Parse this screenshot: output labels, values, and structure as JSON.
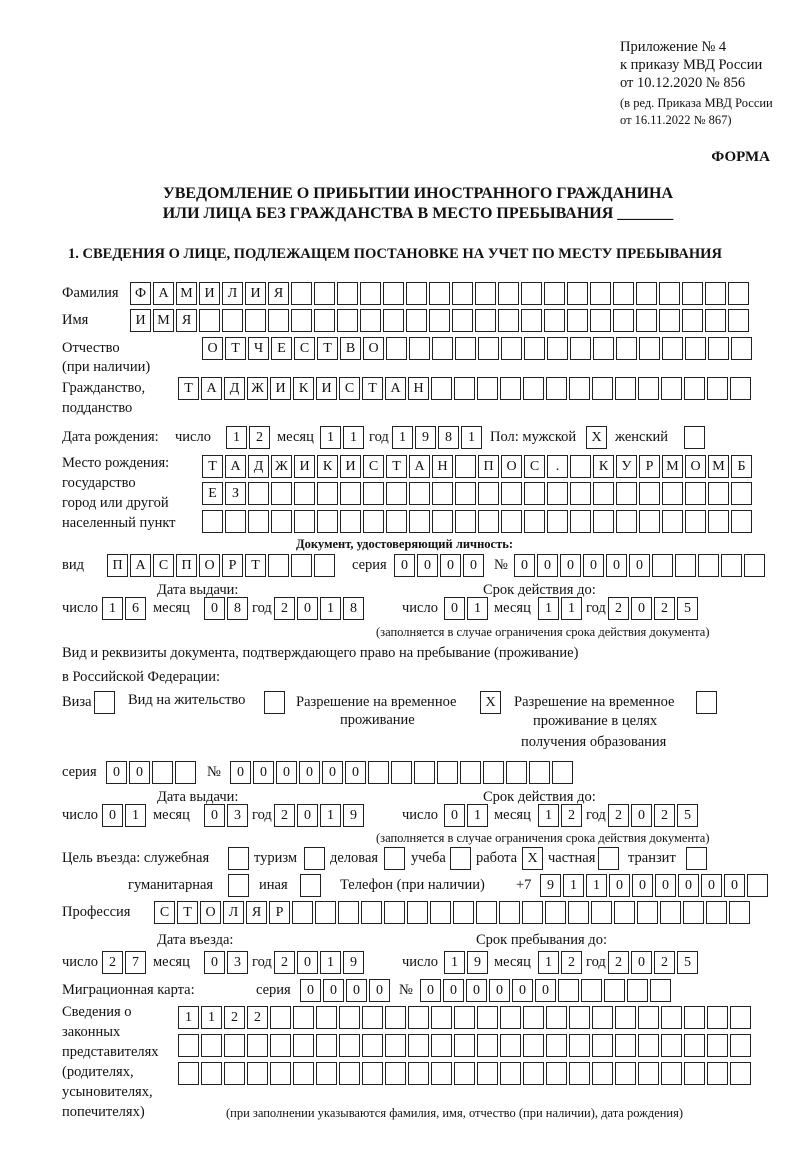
{
  "header": {
    "line1": "Приложение № 4",
    "line2": "к приказу МВД России",
    "line3": "от 10.12.2020 № 856",
    "line4": "(в ред. Приказа МВД России",
    "line5": "от 16.11.2022 № 867)",
    "form": "ФОРМА"
  },
  "title": {
    "line1": "УВЕДОМЛЕНИЕ О ПРИБЫТИИ ИНОСТРАННОГО ГРАЖДАНИНА",
    "line2": "ИЛИ ЛИЦА БЕЗ ГРАЖДАНСТВА В МЕСТО ПРЕБЫВАНИЯ _______"
  },
  "section1": "1. СВЕДЕНИЯ О ЛИЦЕ, ПОДЛЕЖАЩЕМ ПОСТАНОВКЕ НА УЧЕТ ПО МЕСТУ ПРЕБЫВАНИЯ",
  "labels": {
    "surname": "Фамилия",
    "name": "Имя",
    "patronymic": "Отчество",
    "patronymic2": "(при наличии)",
    "citizenship": "Гражданство,",
    "citizenship2": "подданство",
    "birth_date": "Дата рождения:",
    "day": "число",
    "month": "месяц",
    "year": "год",
    "sex": "Пол: мужской",
    "female": "женский",
    "birth_place": "Место рождения:",
    "bp2": "государство",
    "bp3": "город или другой",
    "bp4": "населенный пункт",
    "id_doc": "Документ, удостоверяющий личность:",
    "kind": "вид",
    "series": "серия",
    "number": "№",
    "issue_date": "Дата выдачи:",
    "valid_until": "Срок действия до:",
    "validity_note": "(заполняется в случае ограничения срока действия документа)",
    "right_doc1": "Вид и реквизиты документа, подтверждающего право на пребывание (проживание)",
    "right_doc2": "в Российской Федерации:",
    "visa": "Виза",
    "residence": "Вид на жительство",
    "trp1": "Разрешение на временное",
    "trp2": "проживание",
    "trpe1": "Разрешение на временное",
    "trpe2": "проживание в целях",
    "trpe3": "получения образования",
    "purpose": "Цель въезда: служебная",
    "tourism": "туризм",
    "business": "деловая",
    "study": "учеба",
    "work": "работа",
    "private": "частная",
    "transit": "транзит",
    "humanitarian": "гуманитарная",
    "other": "иная",
    "phone": "Телефон (при наличии)",
    "phone_prefix": "+7",
    "profession": "Профессия",
    "entry_date": "Дата въезда:",
    "stay_until": "Срок пребывания до:",
    "migration_card": "Миграционная карта:",
    "reps1": "Сведения о",
    "reps2": "законных",
    "reps3": "представителях",
    "reps4": "(родителях,",
    "reps5": "усыновителях,",
    "reps6": "попечителях)",
    "reps_note": "(при заполнении указываются фамилия, имя, отчество (при наличии), дата рождения)"
  },
  "person": {
    "surname": "ФАМИЛИЯ",
    "name": "ИМЯ",
    "patronymic": "ОТЧЕСТВО",
    "citizenship": "ТАДЖИКИСТАН",
    "birth_day": "12",
    "birth_month": "11",
    "birth_year": "1981",
    "male": "X",
    "female": "",
    "birth_place1": "ТАДЖИКИСТАН ПОС. КУРМОМБ",
    "birth_place2": "ЕЗ",
    "birth_place3": ""
  },
  "id_document": {
    "kind": "ПАСПОРТ",
    "series": "0000",
    "number": "000000",
    "issue_day": "16",
    "issue_month": "08",
    "issue_year": "2018",
    "valid_day": "01",
    "valid_month": "11",
    "valid_year": "2025"
  },
  "right_document": {
    "visa": "",
    "residence": "",
    "trp": "X",
    "trpe": "",
    "series": "00",
    "number": "000000",
    "issue_day": "01",
    "issue_month": "03",
    "issue_year": "2019",
    "valid_day": "01",
    "valid_month": "12",
    "valid_year": "2025"
  },
  "purpose": {
    "official": "",
    "tourism": "",
    "business": "",
    "study": "",
    "work": "X",
    "private": "",
    "transit": "",
    "humanitarian": "",
    "other": ""
  },
  "phone": "911000000",
  "profession": "СТОЛЯР",
  "entry": {
    "day": "27",
    "month": "03",
    "year": "2019",
    "stay_day": "19",
    "stay_month": "12",
    "stay_year": "2025"
  },
  "migration_card": {
    "series": "0000",
    "number": "000000"
  },
  "legal_reps": {
    "line1": "1122",
    "line2": "",
    "line3": ""
  }
}
